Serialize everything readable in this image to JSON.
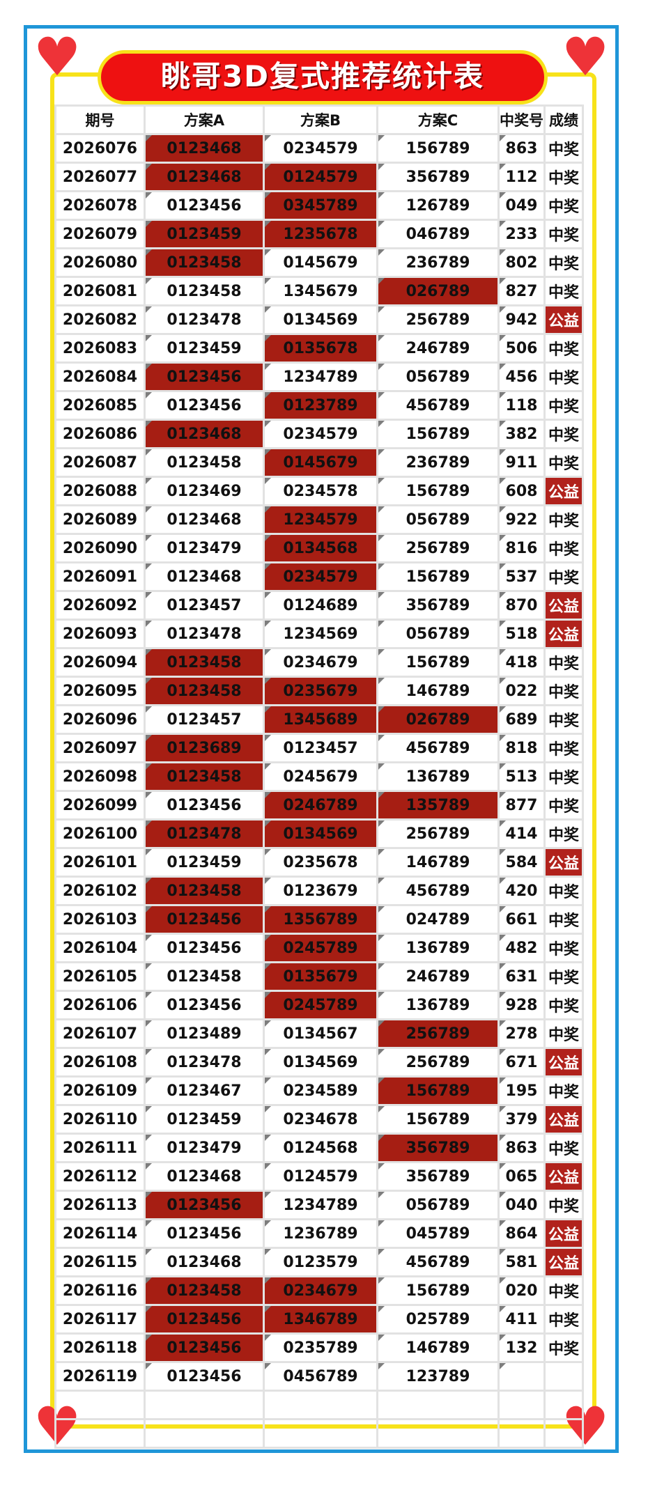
{
  "title": "眺哥3D复式推荐统计表",
  "colors": {
    "hit": "#a61e13",
    "title_bg": "#ee1111",
    "frame": "#1f96d8",
    "border": "#f7e21a",
    "heart": "#ee3338"
  },
  "headers": [
    "期号",
    "方案A",
    "方案B",
    "方案C",
    "中奖号",
    "成绩"
  ],
  "rows": [
    {
      "q": "2026076",
      "a": "0123468",
      "b": "0234579",
      "c": "156789",
      "n": "863",
      "r": "中奖",
      "ha": true,
      "hb": false,
      "hc": false
    },
    {
      "q": "2026077",
      "a": "0123468",
      "b": "0124579",
      "c": "356789",
      "n": "112",
      "r": "中奖",
      "ha": true,
      "hb": true,
      "hc": false
    },
    {
      "q": "2026078",
      "a": "0123456",
      "b": "0345789",
      "c": "126789",
      "n": "049",
      "r": "中奖",
      "ha": false,
      "hb": true,
      "hc": false
    },
    {
      "q": "2026079",
      "a": "0123459",
      "b": "1235678",
      "c": "046789",
      "n": "233",
      "r": "中奖",
      "ha": true,
      "hb": true,
      "hc": false
    },
    {
      "q": "2026080",
      "a": "0123458",
      "b": "0145679",
      "c": "236789",
      "n": "802",
      "r": "中奖",
      "ha": true,
      "hb": false,
      "hc": false
    },
    {
      "q": "2026081",
      "a": "0123458",
      "b": "1345679",
      "c": "026789",
      "n": "827",
      "r": "中奖",
      "ha": false,
      "hb": false,
      "hc": true
    },
    {
      "q": "2026082",
      "a": "0123478",
      "b": "0134569",
      "c": "256789",
      "n": "942",
      "r": "公益",
      "ha": false,
      "hb": false,
      "hc": false
    },
    {
      "q": "2026083",
      "a": "0123459",
      "b": "0135678",
      "c": "246789",
      "n": "506",
      "r": "中奖",
      "ha": false,
      "hb": true,
      "hc": false
    },
    {
      "q": "2026084",
      "a": "0123456",
      "b": "1234789",
      "c": "056789",
      "n": "456",
      "r": "中奖",
      "ha": true,
      "hb": false,
      "hc": false
    },
    {
      "q": "2026085",
      "a": "0123456",
      "b": "0123789",
      "c": "456789",
      "n": "118",
      "r": "中奖",
      "ha": false,
      "hb": true,
      "hc": false
    },
    {
      "q": "2026086",
      "a": "0123468",
      "b": "0234579",
      "c": "156789",
      "n": "382",
      "r": "中奖",
      "ha": true,
      "hb": false,
      "hc": false
    },
    {
      "q": "2026087",
      "a": "0123458",
      "b": "0145679",
      "c": "236789",
      "n": "911",
      "r": "中奖",
      "ha": false,
      "hb": true,
      "hc": false
    },
    {
      "q": "2026088",
      "a": "0123469",
      "b": "0234578",
      "c": "156789",
      "n": "608",
      "r": "公益",
      "ha": false,
      "hb": false,
      "hc": false
    },
    {
      "q": "2026089",
      "a": "0123468",
      "b": "1234579",
      "c": "056789",
      "n": "922",
      "r": "中奖",
      "ha": false,
      "hb": true,
      "hc": false
    },
    {
      "q": "2026090",
      "a": "0123479",
      "b": "0134568",
      "c": "256789",
      "n": "816",
      "r": "中奖",
      "ha": false,
      "hb": true,
      "hc": false
    },
    {
      "q": "2026091",
      "a": "0123468",
      "b": "0234579",
      "c": "156789",
      "n": "537",
      "r": "中奖",
      "ha": false,
      "hb": true,
      "hc": false
    },
    {
      "q": "2026092",
      "a": "0123457",
      "b": "0124689",
      "c": "356789",
      "n": "870",
      "r": "公益",
      "ha": false,
      "hb": false,
      "hc": false
    },
    {
      "q": "2026093",
      "a": "0123478",
      "b": "1234569",
      "c": "056789",
      "n": "518",
      "r": "公益",
      "ha": false,
      "hb": false,
      "hc": false
    },
    {
      "q": "2026094",
      "a": "0123458",
      "b": "0234679",
      "c": "156789",
      "n": "418",
      "r": "中奖",
      "ha": true,
      "hb": false,
      "hc": false
    },
    {
      "q": "2026095",
      "a": "0123458",
      "b": "0235679",
      "c": "146789",
      "n": "022",
      "r": "中奖",
      "ha": true,
      "hb": true,
      "hc": false
    },
    {
      "q": "2026096",
      "a": "0123457",
      "b": "1345689",
      "c": "026789",
      "n": "689",
      "r": "中奖",
      "ha": false,
      "hb": true,
      "hc": true
    },
    {
      "q": "2026097",
      "a": "0123689",
      "b": "0123457",
      "c": "456789",
      "n": "818",
      "r": "中奖",
      "ha": true,
      "hb": false,
      "hc": false
    },
    {
      "q": "2026098",
      "a": "0123458",
      "b": "0245679",
      "c": "136789",
      "n": "513",
      "r": "中奖",
      "ha": true,
      "hb": false,
      "hc": false
    },
    {
      "q": "2026099",
      "a": "0123456",
      "b": "0246789",
      "c": "135789",
      "n": "877",
      "r": "中奖",
      "ha": false,
      "hb": true,
      "hc": true
    },
    {
      "q": "2026100",
      "a": "0123478",
      "b": "0134569",
      "c": "256789",
      "n": "414",
      "r": "中奖",
      "ha": true,
      "hb": true,
      "hc": false
    },
    {
      "q": "2026101",
      "a": "0123459",
      "b": "0235678",
      "c": "146789",
      "n": "584",
      "r": "公益",
      "ha": false,
      "hb": false,
      "hc": false
    },
    {
      "q": "2026102",
      "a": "0123458",
      "b": "0123679",
      "c": "456789",
      "n": "420",
      "r": "中奖",
      "ha": true,
      "hb": false,
      "hc": false
    },
    {
      "q": "2026103",
      "a": "0123456",
      "b": "1356789",
      "c": "024789",
      "n": "661",
      "r": "中奖",
      "ha": true,
      "hb": true,
      "hc": false
    },
    {
      "q": "2026104",
      "a": "0123456",
      "b": "0245789",
      "c": "136789",
      "n": "482",
      "r": "中奖",
      "ha": false,
      "hb": true,
      "hc": false
    },
    {
      "q": "2026105",
      "a": "0123458",
      "b": "0135679",
      "c": "246789",
      "n": "631",
      "r": "中奖",
      "ha": false,
      "hb": true,
      "hc": false
    },
    {
      "q": "2026106",
      "a": "0123456",
      "b": "0245789",
      "c": "136789",
      "n": "928",
      "r": "中奖",
      "ha": false,
      "hb": true,
      "hc": false
    },
    {
      "q": "2026107",
      "a": "0123489",
      "b": "0134567",
      "c": "256789",
      "n": "278",
      "r": "中奖",
      "ha": false,
      "hb": false,
      "hc": true
    },
    {
      "q": "2026108",
      "a": "0123478",
      "b": "0134569",
      "c": "256789",
      "n": "671",
      "r": "公益",
      "ha": false,
      "hb": false,
      "hc": false
    },
    {
      "q": "2026109",
      "a": "0123467",
      "b": "0234589",
      "c": "156789",
      "n": "195",
      "r": "中奖",
      "ha": false,
      "hb": false,
      "hc": true
    },
    {
      "q": "2026110",
      "a": "0123459",
      "b": "0234678",
      "c": "156789",
      "n": "379",
      "r": "公益",
      "ha": false,
      "hb": false,
      "hc": false
    },
    {
      "q": "2026111",
      "a": "0123479",
      "b": "0124568",
      "c": "356789",
      "n": "863",
      "r": "中奖",
      "ha": false,
      "hb": false,
      "hc": true
    },
    {
      "q": "2026112",
      "a": "0123468",
      "b": "0124579",
      "c": "356789",
      "n": "065",
      "r": "公益",
      "ha": false,
      "hb": false,
      "hc": false
    },
    {
      "q": "2026113",
      "a": "0123456",
      "b": "1234789",
      "c": "056789",
      "n": "040",
      "r": "中奖",
      "ha": true,
      "hb": false,
      "hc": false
    },
    {
      "q": "2026114",
      "a": "0123456",
      "b": "1236789",
      "c": "045789",
      "n": "864",
      "r": "公益",
      "ha": false,
      "hb": false,
      "hc": false
    },
    {
      "q": "2026115",
      "a": "0123468",
      "b": "0123579",
      "c": "456789",
      "n": "581",
      "r": "公益",
      "ha": false,
      "hb": false,
      "hc": false
    },
    {
      "q": "2026116",
      "a": "0123458",
      "b": "0234679",
      "c": "156789",
      "n": "020",
      "r": "中奖",
      "ha": true,
      "hb": true,
      "hc": false
    },
    {
      "q": "2026117",
      "a": "0123456",
      "b": "1346789",
      "c": "025789",
      "n": "411",
      "r": "中奖",
      "ha": true,
      "hb": true,
      "hc": false
    },
    {
      "q": "2026118",
      "a": "0123456",
      "b": "0235789",
      "c": "146789",
      "n": "132",
      "r": "中奖",
      "ha": true,
      "hb": false,
      "hc": false
    },
    {
      "q": "2026119",
      "a": "0123456",
      "b": "0456789",
      "c": "123789",
      "n": "",
      "r": "",
      "ha": false,
      "hb": false,
      "hc": false
    },
    {
      "q": "",
      "a": "",
      "b": "",
      "c": "",
      "n": "",
      "r": "",
      "ha": false,
      "hb": false,
      "hc": false
    },
    {
      "q": "",
      "a": "",
      "b": "",
      "c": "",
      "n": "",
      "r": "",
      "ha": false,
      "hb": false,
      "hc": false
    }
  ]
}
